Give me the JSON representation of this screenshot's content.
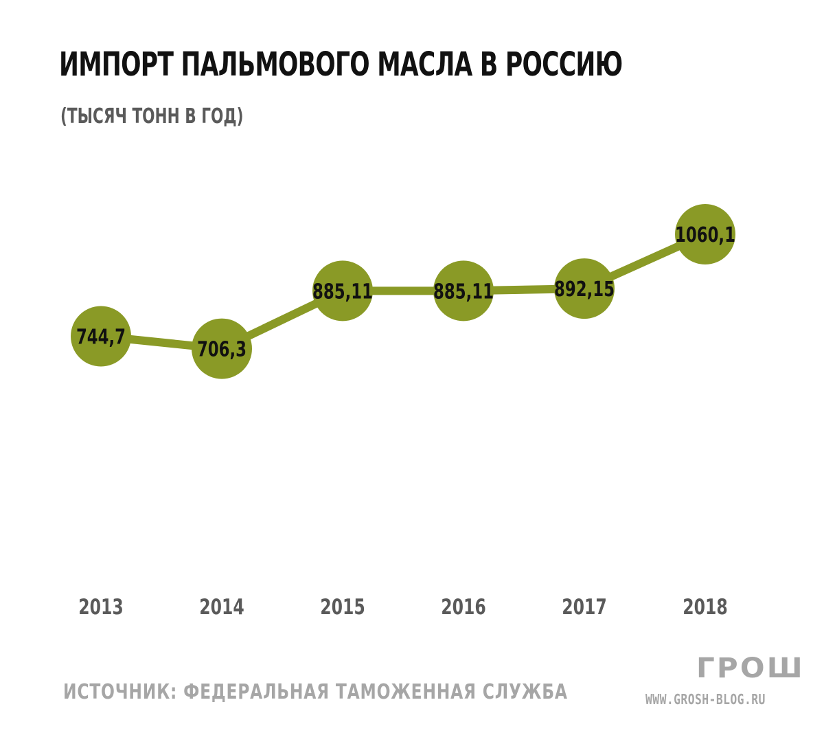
{
  "header": {
    "title": "ИМПОРТ ПАЛЬМОВОГО МАСЛА В РОССИЮ",
    "subtitle": "(ТЫСЯЧ ТОНН В ГОД)"
  },
  "footer": {
    "source": "ИСТОЧНИК: ФЕДЕРАЛЬНАЯ ТАМОЖЕННАЯ СЛУЖБА",
    "logo_text": "ГРОШ",
    "site": "WWW.GROSH-BLOG.RU"
  },
  "colors": {
    "series": "#8a9a26",
    "label_text": "#111111",
    "axis_text": "#5a5a5a",
    "footer_text": "#a6a6a6"
  },
  "chart_data": {
    "type": "line",
    "title": "ИМПОРТ ПАЛЬМОВОГО МАСЛА В РОССИЮ",
    "subtitle": "(ТЫСЯЧ ТОНН В ГОД)",
    "xlabel": "",
    "ylabel": "",
    "categories": [
      "2013",
      "2014",
      "2015",
      "2016",
      "2017",
      "2018"
    ],
    "values": [
      744.7,
      706.3,
      885.11,
      885.11,
      892.15,
      1060.1
    ],
    "data_labels": [
      "744,7",
      "706,3",
      "885,11",
      "885,11",
      "892,15",
      "1060,1"
    ],
    "grid": false,
    "legend": "none",
    "marker": "circle"
  }
}
